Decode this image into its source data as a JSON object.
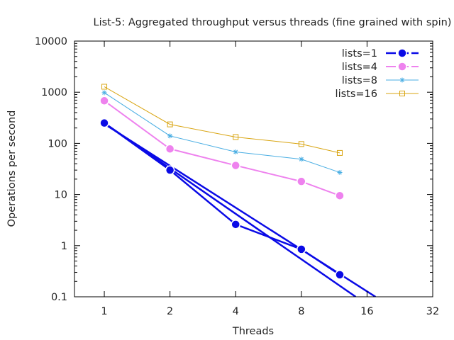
{
  "chart_data": {
    "type": "line",
    "title": "List-5: Aggregated throughput versus threads (fine grained with spin)",
    "xlabel": "Threads",
    "ylabel": "Operations per second",
    "x_scale": "log2",
    "y_scale": "log10",
    "xlim": [
      0.73,
      32
    ],
    "ylim": [
      0.1,
      10000
    ],
    "x_ticks": [
      1,
      2,
      4,
      8,
      16,
      32
    ],
    "x_tick_labels": [
      "1",
      "2",
      "4",
      "8",
      "16",
      "32"
    ],
    "y_ticks": [
      0.1,
      1,
      10,
      100,
      1000,
      10000
    ],
    "y_tick_labels": [
      "0.1",
      "1",
      "10",
      "100",
      "1000",
      "10000"
    ],
    "legend_position": "top-right",
    "grid": false,
    "series": [
      {
        "name": "lists=1",
        "color": "#0a0ae6",
        "marker": "filled-circle",
        "points": [
          [
            1,
            250
          ],
          [
            2,
            30
          ],
          [
            4,
            2.6
          ],
          [
            8,
            0.85
          ],
          [
            12,
            0.27
          ]
        ]
      },
      {
        "name": "lists=4",
        "color": "#ee82ee",
        "marker": "filled-circle",
        "points": [
          [
            1,
            680
          ],
          [
            2,
            78
          ],
          [
            4,
            37
          ],
          [
            8,
            18
          ],
          [
            12,
            9.5
          ]
        ]
      },
      {
        "name": "lists=8",
        "color": "#4aaee3",
        "marker": "star",
        "points": [
          [
            1,
            980
          ],
          [
            2,
            140
          ],
          [
            4,
            68
          ],
          [
            8,
            49
          ],
          [
            12,
            27
          ]
        ]
      },
      {
        "name": "lists=16",
        "color": "#d9a512",
        "marker": "open-square",
        "points": [
          [
            1,
            1280
          ],
          [
            2,
            235
          ],
          [
            4,
            133
          ],
          [
            8,
            97
          ],
          [
            12,
            65
          ]
        ]
      }
    ],
    "fit_lines": [
      {
        "name": "lists=1 fit 1",
        "color": "#0a0ae6",
        "points": [
          [
            1,
            240
          ],
          [
            17.5,
            0.1
          ]
        ]
      },
      {
        "name": "lists=1 fit 2",
        "color": "#0a0ae6",
        "points": [
          [
            1,
            250
          ],
          [
            14.2,
            0.1
          ]
        ]
      }
    ]
  }
}
